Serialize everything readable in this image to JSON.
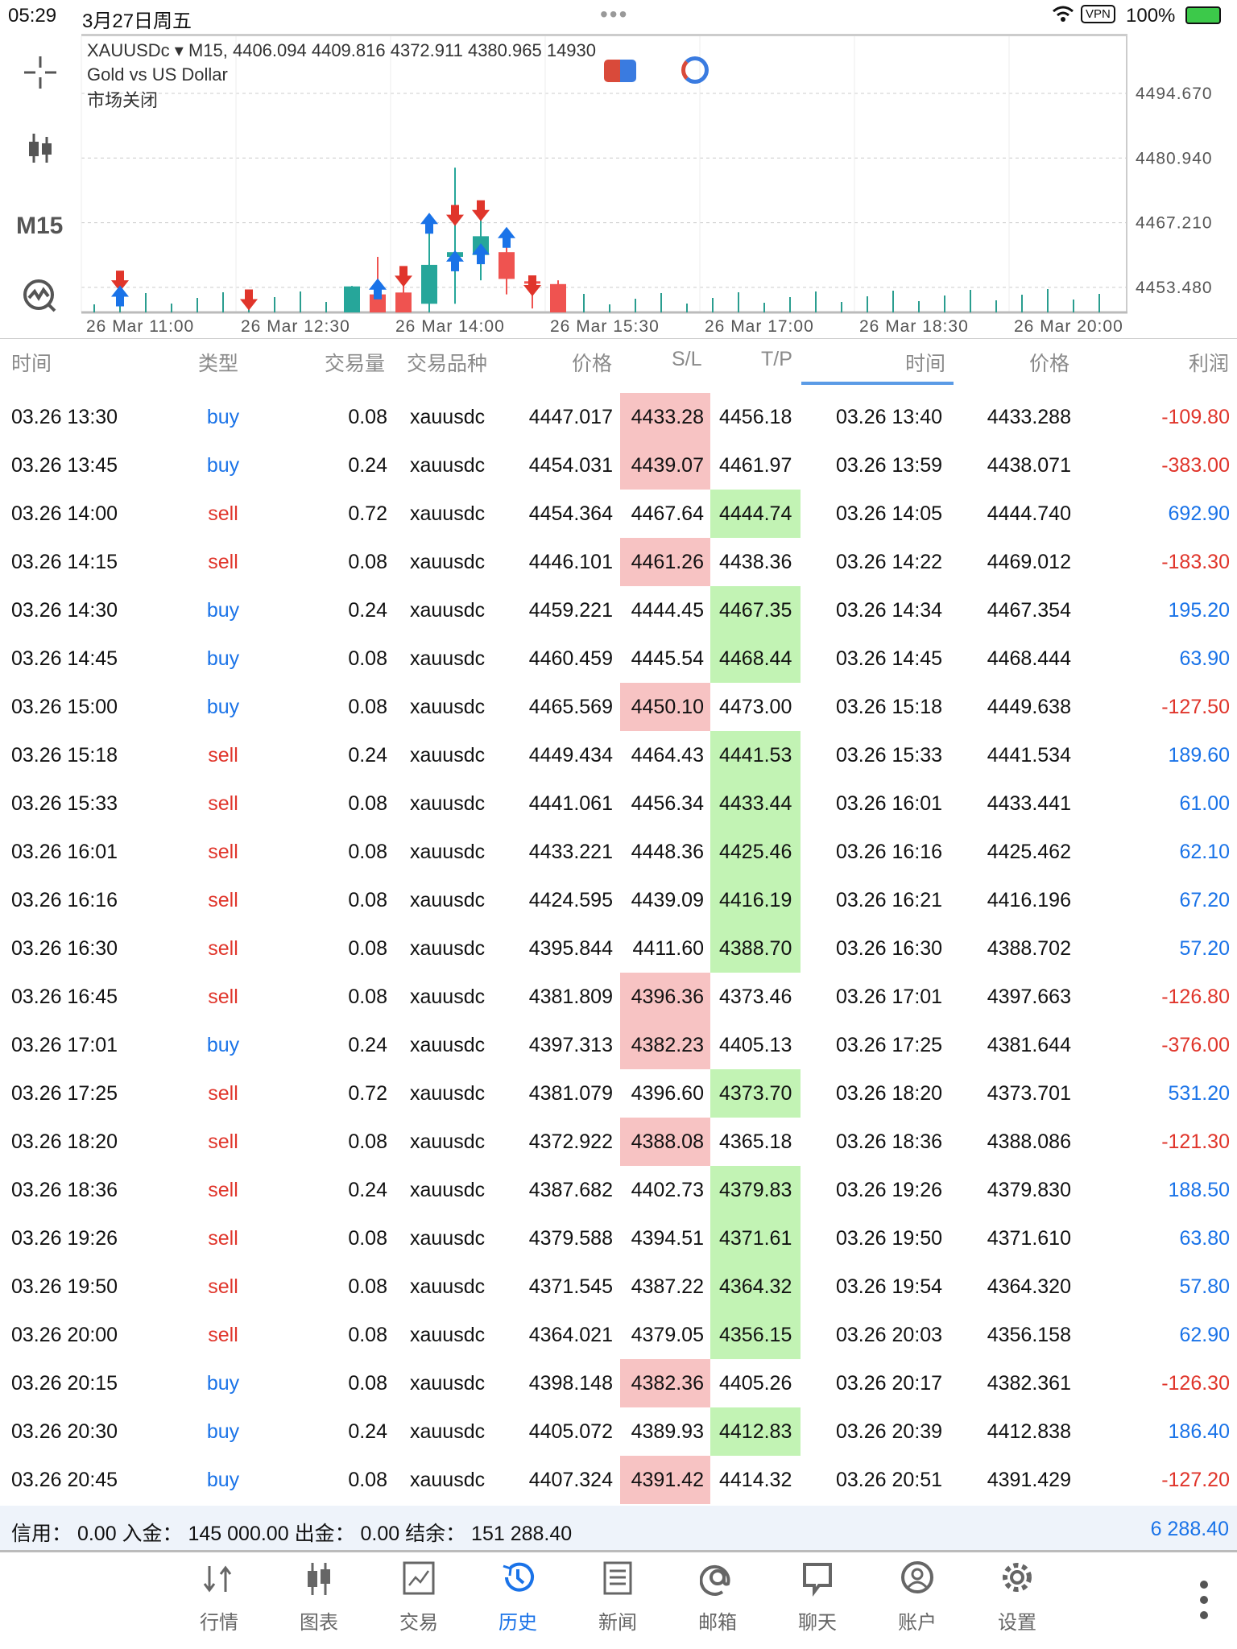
{
  "status": {
    "time": "05:29",
    "date": "3月27日周五",
    "vpn": "VPN",
    "battery": "100%"
  },
  "chart": {
    "header": "XAUUSDc ▾ M15, 4406.094 4409.816 4372.911 4380.965 14930",
    "desc": "Gold vs US Dollar",
    "market": "市场关闭",
    "timeframe": "M15",
    "price_labels": [
      "4494.670",
      "4480.940",
      "4467.210",
      "4453.480"
    ],
    "time_labels": [
      "26 Mar 11:00",
      "26 Mar 12:30",
      "26 Mar 14:00",
      "26 Mar 15:30",
      "26 Mar 17:00",
      "26 Mar 18:30",
      "26 Mar 20:00"
    ]
  },
  "chart_data": {
    "type": "candlestick",
    "ylim": [
      4449.5,
      4500
    ],
    "price_ticks": [
      4494.67,
      4480.94,
      4467.21,
      4453.48
    ],
    "candles": [
      {
        "i": 10,
        "o": 4440,
        "h": 4453.8,
        "l": 4440,
        "c": 4453.7
      },
      {
        "i": 11,
        "o": 4452,
        "h": 4460,
        "l": 4440,
        "c": 4445
      },
      {
        "i": 12,
        "o": 4452.4,
        "h": 4458,
        "l": 4440,
        "c": 4440
      },
      {
        "i": 13,
        "o": 4450,
        "h": 4466,
        "l": 4448,
        "c": 4458.3
      },
      {
        "i": 14,
        "o": 4460,
        "h": 4479,
        "l": 4450,
        "c": 4461
      },
      {
        "i": 15,
        "o": 4460.4,
        "h": 4470,
        "l": 4455,
        "c": 4464.4
      },
      {
        "i": 16,
        "o": 4461,
        "h": 4465.5,
        "l": 4452,
        "c": 4455.3
      },
      {
        "i": 17,
        "o": 4454.8,
        "h": 4456,
        "l": 4449,
        "c": 4454.3
      },
      {
        "i": 18,
        "o": 4454.2,
        "h": 4455,
        "l": 4440,
        "c": 4440
      }
    ],
    "markers": [
      {
        "i": 1,
        "p": 4455,
        "d": "down"
      },
      {
        "i": 1,
        "p": 4451.5,
        "d": "up"
      },
      {
        "i": 6,
        "p": 4451,
        "d": "down"
      },
      {
        "i": 11,
        "p": 4453,
        "d": "up"
      },
      {
        "i": 12,
        "p": 4456,
        "d": "down"
      },
      {
        "i": 13,
        "p": 4467,
        "d": "up"
      },
      {
        "i": 14,
        "p": 4469,
        "d": "down"
      },
      {
        "i": 15,
        "p": 4470,
        "d": "down"
      },
      {
        "i": 14,
        "p": 4459,
        "d": "up"
      },
      {
        "i": 15,
        "p": 4460.5,
        "d": "up"
      },
      {
        "i": 16,
        "p": 4464,
        "d": "up"
      },
      {
        "i": 17,
        "p": 4454,
        "d": "down"
      }
    ]
  },
  "table": {
    "headers": [
      "时间",
      "类型",
      "交易量",
      "交易品种",
      "价格",
      "S/L",
      "T/P",
      "时间",
      "价格",
      "利润"
    ],
    "rows": [
      [
        "03.26 13:30",
        "buy",
        "0.08",
        "xauusdc",
        "4447.017",
        "4433.28",
        "4456.18",
        "03.26 13:40",
        "4433.288",
        "-109.80",
        "sl"
      ],
      [
        "03.26 13:45",
        "buy",
        "0.24",
        "xauusdc",
        "4454.031",
        "4439.07",
        "4461.97",
        "03.26 13:59",
        "4438.071",
        "-383.00",
        "sl"
      ],
      [
        "03.26 14:00",
        "sell",
        "0.72",
        "xauusdc",
        "4454.364",
        "4467.64",
        "4444.74",
        "03.26 14:05",
        "4444.740",
        "692.90",
        "tp"
      ],
      [
        "03.26 14:15",
        "sell",
        "0.08",
        "xauusdc",
        "4446.101",
        "4461.26",
        "4438.36",
        "03.26 14:22",
        "4469.012",
        "-183.30",
        "sl"
      ],
      [
        "03.26 14:30",
        "buy",
        "0.24",
        "xauusdc",
        "4459.221",
        "4444.45",
        "4467.35",
        "03.26 14:34",
        "4467.354",
        "195.20",
        "tp"
      ],
      [
        "03.26 14:45",
        "buy",
        "0.08",
        "xauusdc",
        "4460.459",
        "4445.54",
        "4468.44",
        "03.26 14:45",
        "4468.444",
        "63.90",
        "tp"
      ],
      [
        "03.26 15:00",
        "buy",
        "0.08",
        "xauusdc",
        "4465.569",
        "4450.10",
        "4473.00",
        "03.26 15:18",
        "4449.638",
        "-127.50",
        "sl"
      ],
      [
        "03.26 15:18",
        "sell",
        "0.24",
        "xauusdc",
        "4449.434",
        "4464.43",
        "4441.53",
        "03.26 15:33",
        "4441.534",
        "189.60",
        "tp"
      ],
      [
        "03.26 15:33",
        "sell",
        "0.08",
        "xauusdc",
        "4441.061",
        "4456.34",
        "4433.44",
        "03.26 16:01",
        "4433.441",
        "61.00",
        "tp"
      ],
      [
        "03.26 16:01",
        "sell",
        "0.08",
        "xauusdc",
        "4433.221",
        "4448.36",
        "4425.46",
        "03.26 16:16",
        "4425.462",
        "62.10",
        "tp"
      ],
      [
        "03.26 16:16",
        "sell",
        "0.08",
        "xauusdc",
        "4424.595",
        "4439.09",
        "4416.19",
        "03.26 16:21",
        "4416.196",
        "67.20",
        "tp"
      ],
      [
        "03.26 16:30",
        "sell",
        "0.08",
        "xauusdc",
        "4395.844",
        "4411.60",
        "4388.70",
        "03.26 16:30",
        "4388.702",
        "57.20",
        "tp"
      ],
      [
        "03.26 16:45",
        "sell",
        "0.08",
        "xauusdc",
        "4381.809",
        "4396.36",
        "4373.46",
        "03.26 17:01",
        "4397.663",
        "-126.80",
        "sl"
      ],
      [
        "03.26 17:01",
        "buy",
        "0.24",
        "xauusdc",
        "4397.313",
        "4382.23",
        "4405.13",
        "03.26 17:25",
        "4381.644",
        "-376.00",
        "sl"
      ],
      [
        "03.26 17:25",
        "sell",
        "0.72",
        "xauusdc",
        "4381.079",
        "4396.60",
        "4373.70",
        "03.26 18:20",
        "4373.701",
        "531.20",
        "tp"
      ],
      [
        "03.26 18:20",
        "sell",
        "0.08",
        "xauusdc",
        "4372.922",
        "4388.08",
        "4365.18",
        "03.26 18:36",
        "4388.086",
        "-121.30",
        "sl"
      ],
      [
        "03.26 18:36",
        "sell",
        "0.24",
        "xauusdc",
        "4387.682",
        "4402.73",
        "4379.83",
        "03.26 19:26",
        "4379.830",
        "188.50",
        "tp"
      ],
      [
        "03.26 19:26",
        "sell",
        "0.08",
        "xauusdc",
        "4379.588",
        "4394.51",
        "4371.61",
        "03.26 19:50",
        "4371.610",
        "63.80",
        "tp"
      ],
      [
        "03.26 19:50",
        "sell",
        "0.08",
        "xauusdc",
        "4371.545",
        "4387.22",
        "4364.32",
        "03.26 19:54",
        "4364.320",
        "57.80",
        "tp"
      ],
      [
        "03.26 20:00",
        "sell",
        "0.08",
        "xauusdc",
        "4364.021",
        "4379.05",
        "4356.15",
        "03.26 20:03",
        "4356.158",
        "62.90",
        "tp"
      ],
      [
        "03.26 20:15",
        "buy",
        "0.08",
        "xauusdc",
        "4398.148",
        "4382.36",
        "4405.26",
        "03.26 20:17",
        "4382.361",
        "-126.30",
        "sl"
      ],
      [
        "03.26 20:30",
        "buy",
        "0.24",
        "xauusdc",
        "4405.072",
        "4389.93",
        "4412.83",
        "03.26 20:39",
        "4412.838",
        "186.40",
        "tp"
      ],
      [
        "03.26 20:45",
        "buy",
        "0.08",
        "xauusdc",
        "4407.324",
        "4391.42",
        "4414.32",
        "03.26 20:51",
        "4391.429",
        "-127.20",
        "sl"
      ]
    ]
  },
  "footer": {
    "summary": "信用： 0.00 入金： 145 000.00 出金： 0.00 结余： 151 288.40",
    "total": "6 288.40"
  },
  "nav": [
    {
      "label": "行情",
      "icon": "quotes-icon"
    },
    {
      "label": "图表",
      "icon": "chart-icon"
    },
    {
      "label": "交易",
      "icon": "trade-icon"
    },
    {
      "label": "历史",
      "icon": "history-icon",
      "active": true
    },
    {
      "label": "新闻",
      "icon": "news-icon"
    },
    {
      "label": "邮箱",
      "icon": "mail-icon"
    },
    {
      "label": "聊天",
      "icon": "chat-icon"
    },
    {
      "label": "账户",
      "icon": "account-icon"
    },
    {
      "label": "设置",
      "icon": "settings-icon"
    }
  ]
}
